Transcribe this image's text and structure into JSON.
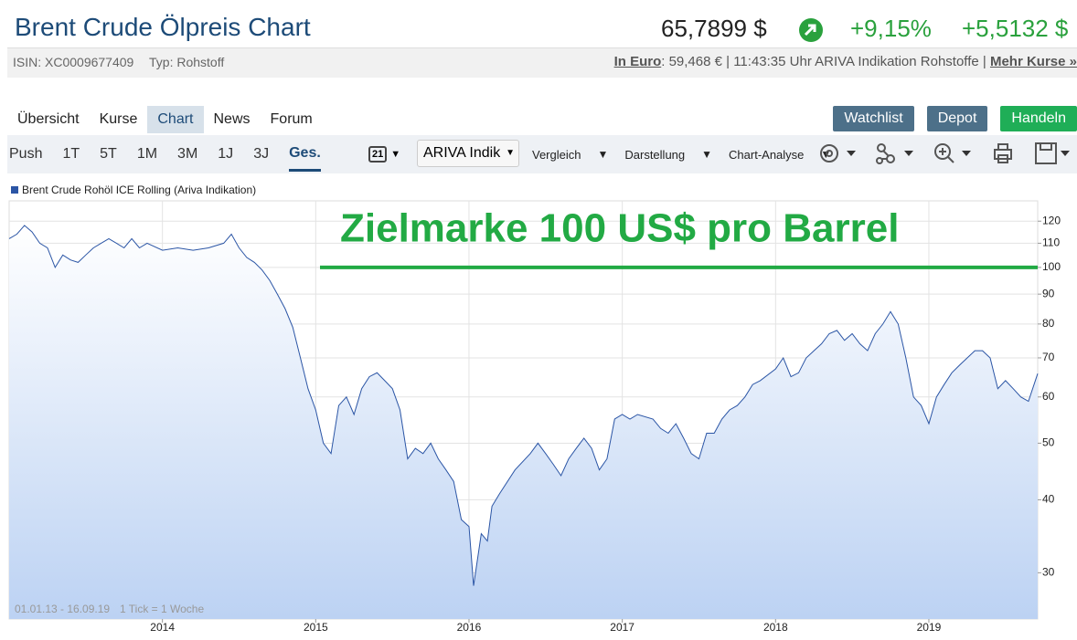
{
  "header": {
    "title": "Brent Crude Ölpreis Chart",
    "price": "65,7899 $",
    "change_pct": "+9,15%",
    "change_abs": "+5,5132 $",
    "isin": "ISIN: XC0009677409",
    "typ": "Typ: Rohstoff",
    "euro_link": "In Euro",
    "euro_info": ": 59,468 € | 11:43:35 Uhr ARIVA Indikation Rohstoffe |",
    "more_link": "Mehr Kurse »"
  },
  "tabs": [
    "Übersicht",
    "Kurse",
    "Chart",
    "News",
    "Forum"
  ],
  "active_tab": 2,
  "buttons": [
    {
      "label": "Watchlist",
      "color": "#4d7089"
    },
    {
      "label": "Depot",
      "color": "#4d7089"
    },
    {
      "label": "Handeln",
      "color": "#1fae57"
    }
  ],
  "periods": [
    "Push",
    "1T",
    "5T",
    "1M",
    "3M",
    "1J",
    "3J",
    "Ges."
  ],
  "active_period": 7,
  "calendar_day": "21",
  "source_select": "ARIVA Indik",
  "menus": [
    "Vergleich",
    "Darstellung",
    "Chart-Analyse"
  ],
  "chart_data": {
    "type": "line",
    "annotation": "Zielmarke 100 US$ pro Barrel",
    "target_line": {
      "value": 100,
      "color": "#22aa44"
    },
    "range_note": "01.01.13 - 16.09.19",
    "tick_note": "1 Tick = 1 Woche",
    "log_scale": true,
    "grid": true,
    "x": [
      2013.0,
      2013.05,
      2013.1,
      2013.15,
      2013.2,
      2013.25,
      2013.3,
      2013.35,
      2013.4,
      2013.45,
      2013.5,
      2013.55,
      2013.6,
      2013.65,
      2013.7,
      2013.75,
      2013.8,
      2013.85,
      2013.9,
      2014.0,
      2014.1,
      2014.2,
      2014.3,
      2014.4,
      2014.45,
      2014.5,
      2014.55,
      2014.6,
      2014.65,
      2014.7,
      2014.75,
      2014.8,
      2014.85,
      2014.9,
      2014.95,
      2015.0,
      2015.05,
      2015.1,
      2015.15,
      2015.2,
      2015.25,
      2015.3,
      2015.35,
      2015.4,
      2015.45,
      2015.5,
      2015.55,
      2015.6,
      2015.65,
      2015.7,
      2015.75,
      2015.8,
      2015.85,
      2015.9,
      2015.95,
      2016.0,
      2016.03,
      2016.08,
      2016.12,
      2016.15,
      2016.2,
      2016.3,
      2016.4,
      2016.45,
      2016.5,
      2016.55,
      2016.6,
      2016.65,
      2016.7,
      2016.75,
      2016.8,
      2016.85,
      2016.9,
      2016.95,
      2017.0,
      2017.05,
      2017.1,
      2017.2,
      2017.25,
      2017.3,
      2017.35,
      2017.4,
      2017.45,
      2017.5,
      2017.55,
      2017.6,
      2017.65,
      2017.7,
      2017.75,
      2017.8,
      2017.85,
      2017.9,
      2018.0,
      2018.05,
      2018.1,
      2018.15,
      2018.2,
      2018.3,
      2018.35,
      2018.4,
      2018.45,
      2018.5,
      2018.55,
      2018.6,
      2018.65,
      2018.7,
      2018.75,
      2018.8,
      2018.85,
      2018.9,
      2018.95,
      2019.0,
      2019.05,
      2019.1,
      2019.15,
      2019.2,
      2019.3,
      2019.35,
      2019.4,
      2019.45,
      2019.5,
      2019.55,
      2019.6,
      2019.65,
      2019.71
    ],
    "series": [
      {
        "name": "Brent Crude Rohöl ICE Rolling (Ariva Indikation)",
        "color": "#2b55a5",
        "values": [
          112,
          114,
          118,
          115,
          110,
          108,
          100,
          105,
          103,
          102,
          105,
          108,
          110,
          112,
          110,
          108,
          112,
          108,
          110,
          107,
          108,
          107,
          108,
          110,
          114,
          108,
          104,
          102,
          99,
          95,
          90,
          85,
          79,
          70,
          62,
          57,
          50,
          48,
          58,
          60,
          56,
          62,
          65,
          66,
          64,
          62,
          57,
          47,
          49,
          48,
          50,
          47,
          45,
          43,
          37,
          36,
          28.5,
          35,
          34,
          39,
          41,
          45,
          48,
          50,
          48,
          46,
          44,
          47,
          49,
          51,
          49,
          45,
          47,
          55,
          56,
          55,
          56,
          55,
          53,
          52,
          54,
          51,
          48,
          47,
          52,
          52,
          55,
          57,
          58,
          60,
          63,
          64,
          67,
          70,
          65,
          66,
          70,
          74,
          77,
          78,
          75,
          77,
          74,
          72,
          77,
          80,
          84,
          80,
          70,
          60,
          58,
          54,
          60,
          63,
          66,
          68,
          72,
          72,
          70,
          62,
          64,
          62,
          60,
          59,
          65.8
        ]
      }
    ],
    "xlim": [
      2013,
      2019.71
    ],
    "xticks": [
      2014,
      2015,
      2016,
      2017,
      2018,
      2019
    ],
    "ylim": [
      25,
      130
    ],
    "yticks": [
      30,
      40,
      50,
      60,
      70,
      80,
      90,
      100,
      110,
      120
    ]
  }
}
